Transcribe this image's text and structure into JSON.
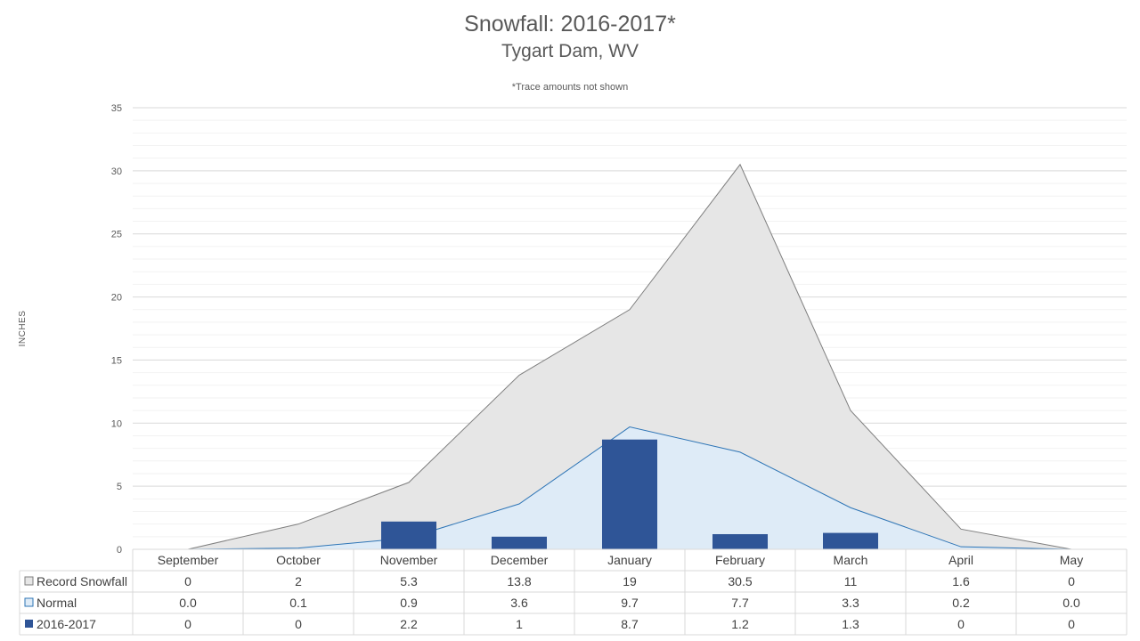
{
  "chart_data": {
    "type": "area",
    "title": "Snowfall: 2016-2017*",
    "subtitle": "Tygart Dam, WV",
    "note": "*Trace amounts not shown",
    "ylabel": "INCHES",
    "ylim": [
      0,
      35
    ],
    "yticks": [
      0,
      5,
      10,
      15,
      20,
      25,
      30,
      35
    ],
    "grid": true,
    "legend": "data-table",
    "categories": [
      "September",
      "October",
      "November",
      "December",
      "January",
      "February",
      "March",
      "April",
      "May"
    ],
    "series": [
      {
        "name": "Record Snowfall",
        "kind": "area",
        "color": "#e6e6e6",
        "stroke": "#7f7f7f",
        "values": [
          0,
          2,
          5.3,
          13.8,
          19,
          30.5,
          11,
          1.6,
          0
        ],
        "labels": [
          "0",
          "2",
          "5.3",
          "13.8",
          "19",
          "30.5",
          "11",
          "1.6",
          "0"
        ]
      },
      {
        "name": "Normal",
        "kind": "area",
        "color": "#deebf7",
        "stroke": "#2e75b6",
        "values": [
          0.0,
          0.1,
          0.9,
          3.6,
          9.7,
          7.7,
          3.3,
          0.2,
          0.0
        ],
        "labels": [
          "0.0",
          "0.1",
          "0.9",
          "3.6",
          "9.7",
          "7.7",
          "3.3",
          "0.2",
          "0.0"
        ]
      },
      {
        "name": "2016-2017",
        "kind": "bar",
        "color": "#2f5597",
        "values": [
          0,
          0,
          2.2,
          1,
          8.7,
          1.2,
          1.3,
          0,
          0
        ],
        "labels": [
          "0",
          "0",
          "2.2",
          "1",
          "8.7",
          "1.2",
          "1.3",
          "0",
          "0"
        ]
      }
    ]
  }
}
